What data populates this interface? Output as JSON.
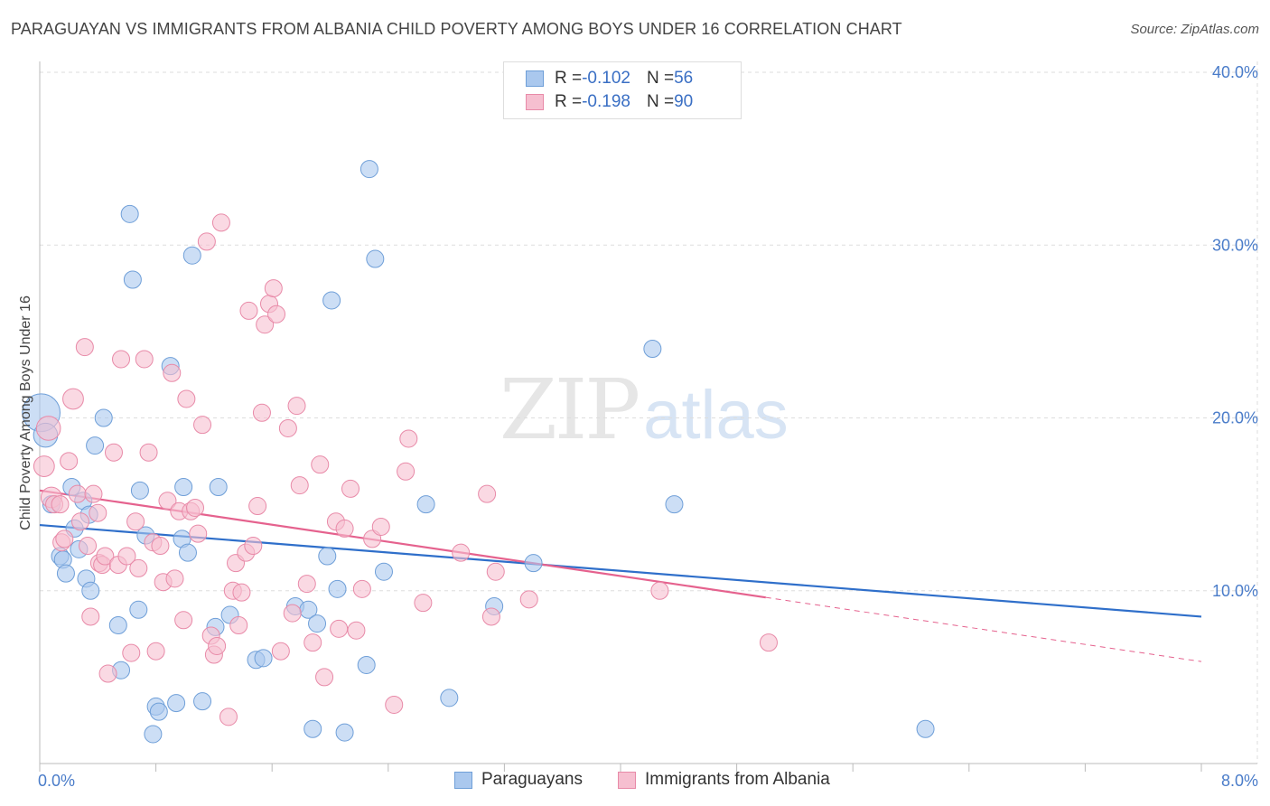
{
  "header": {
    "title": "PARAGUAYAN VS IMMIGRANTS FROM ALBANIA CHILD POVERTY AMONG BOYS UNDER 16 CORRELATION CHART",
    "source": "Source: ZipAtlas.com"
  },
  "watermark": {
    "zip": "ZIP",
    "atlas": "atlas"
  },
  "legend": {
    "rows": [
      {
        "r_label": "R = ",
        "r_value": "-0.102",
        "n_label": "N = ",
        "n_value": "56"
      },
      {
        "r_label": "R = ",
        "r_value": "-0.198",
        "n_label": "N = ",
        "n_value": "90"
      }
    ],
    "bottom": [
      "Paraguayans",
      "Immigrants from Albania"
    ]
  },
  "colors": {
    "blue_fill": "#aac8ee",
    "blue_stroke": "#6f9fd8",
    "blue_line": "#2f6fca",
    "pink_fill": "#f6bfd0",
    "pink_stroke": "#e88aa8",
    "pink_line": "#e5628e",
    "grid": "#dddddd",
    "tick_text": "#4a7cc9"
  },
  "chart_data": {
    "type": "scatter",
    "title": "PARAGUAYAN VS IMMIGRANTS FROM ALBANIA CHILD POVERTY AMONG BOYS UNDER 16 CORRELATION CHART",
    "xlabel": "",
    "ylabel": "Child Poverty Among Boys Under 16",
    "xlim": [
      0,
      8
    ],
    "ylim": [
      0,
      40
    ],
    "x_ticks": [
      "0.0%",
      "8.0%"
    ],
    "y_ticks": [
      {
        "value": 10,
        "label": "10.0%"
      },
      {
        "value": 20,
        "label": "20.0%"
      },
      {
        "value": 30,
        "label": "30.0%"
      },
      {
        "value": 40,
        "label": "40.0%"
      }
    ],
    "grid": true,
    "legend_position": "top-center",
    "series": [
      {
        "name": "Paraguayans",
        "r": -0.102,
        "n": 56,
        "trend": {
          "x0": 0,
          "y0": 13.8,
          "x1": 8,
          "y1": 8.5,
          "dashed_from": null
        },
        "points": [
          [
            0.01,
            20.3,
            22
          ],
          [
            0.04,
            19.0,
            14
          ],
          [
            0.08,
            15.0,
            10
          ],
          [
            0.14,
            12.0,
            10
          ],
          [
            0.16,
            11.8,
            10
          ],
          [
            0.18,
            11.0,
            10
          ],
          [
            0.22,
            16.0,
            10
          ],
          [
            0.24,
            13.6,
            10
          ],
          [
            0.27,
            12.4,
            10
          ],
          [
            0.3,
            15.2,
            10
          ],
          [
            0.32,
            10.7,
            10
          ],
          [
            0.34,
            14.4,
            10
          ],
          [
            0.35,
            10.0,
            10
          ],
          [
            0.38,
            18.4,
            10
          ],
          [
            0.44,
            20.0,
            10
          ],
          [
            0.54,
            8.0,
            10
          ],
          [
            0.56,
            5.4,
            10
          ],
          [
            0.62,
            31.8,
            10
          ],
          [
            0.64,
            28.0,
            10
          ],
          [
            0.68,
            8.9,
            10
          ],
          [
            0.69,
            15.8,
            10
          ],
          [
            0.73,
            13.2,
            10
          ],
          [
            0.78,
            1.7,
            10
          ],
          [
            0.8,
            3.3,
            10
          ],
          [
            0.82,
            3.0,
            10
          ],
          [
            0.9,
            23.0,
            10
          ],
          [
            0.94,
            3.5,
            10
          ],
          [
            0.98,
            13.0,
            10
          ],
          [
            0.99,
            16.0,
            10
          ],
          [
            1.02,
            12.2,
            10
          ],
          [
            1.05,
            29.4,
            10
          ],
          [
            1.12,
            3.6,
            10
          ],
          [
            1.21,
            7.9,
            10
          ],
          [
            1.23,
            16.0,
            10
          ],
          [
            1.31,
            8.6,
            10
          ],
          [
            1.49,
            6.0,
            10
          ],
          [
            1.54,
            6.1,
            10
          ],
          [
            1.76,
            9.1,
            10
          ],
          [
            1.85,
            8.9,
            10
          ],
          [
            1.88,
            2.0,
            10
          ],
          [
            1.91,
            8.1,
            10
          ],
          [
            1.98,
            12.0,
            10
          ],
          [
            2.01,
            26.8,
            10
          ],
          [
            2.05,
            10.1,
            10
          ],
          [
            2.1,
            1.8,
            10
          ],
          [
            2.25,
            5.7,
            10
          ],
          [
            2.27,
            34.4,
            10
          ],
          [
            2.31,
            29.2,
            10
          ],
          [
            2.37,
            11.1,
            10
          ],
          [
            2.66,
            15.0,
            10
          ],
          [
            2.82,
            3.8,
            10
          ],
          [
            3.13,
            9.1,
            10
          ],
          [
            3.4,
            11.6,
            10
          ],
          [
            4.22,
            24.0,
            10
          ],
          [
            4.37,
            15.0,
            10
          ],
          [
            6.1,
            2.0,
            10
          ]
        ]
      },
      {
        "name": "Immigrants from Albania",
        "r": -0.198,
        "n": 90,
        "trend": {
          "x0": 0,
          "y0": 15.8,
          "x1": 8,
          "y1": 5.9,
          "dashed_from": 5.0
        },
        "points": [
          [
            0.03,
            17.2,
            12
          ],
          [
            0.06,
            19.4,
            14
          ],
          [
            0.08,
            15.4,
            12
          ],
          [
            0.1,
            15.0,
            10
          ],
          [
            0.14,
            15.0,
            10
          ],
          [
            0.15,
            12.8,
            10
          ],
          [
            0.17,
            13.0,
            10
          ],
          [
            0.2,
            17.5,
            10
          ],
          [
            0.23,
            21.1,
            12
          ],
          [
            0.26,
            15.6,
            10
          ],
          [
            0.28,
            14.0,
            10
          ],
          [
            0.31,
            24.1,
            10
          ],
          [
            0.33,
            12.6,
            10
          ],
          [
            0.35,
            8.5,
            10
          ],
          [
            0.37,
            15.6,
            10
          ],
          [
            0.4,
            14.5,
            10
          ],
          [
            0.41,
            11.6,
            10
          ],
          [
            0.43,
            11.5,
            10
          ],
          [
            0.45,
            12.0,
            10
          ],
          [
            0.47,
            5.2,
            10
          ],
          [
            0.51,
            18.0,
            10
          ],
          [
            0.54,
            11.5,
            10
          ],
          [
            0.56,
            23.4,
            10
          ],
          [
            0.6,
            12.0,
            10
          ],
          [
            0.63,
            6.4,
            10
          ],
          [
            0.66,
            14.0,
            10
          ],
          [
            0.68,
            11.3,
            10
          ],
          [
            0.72,
            23.4,
            10
          ],
          [
            0.75,
            18.0,
            10
          ],
          [
            0.78,
            12.8,
            10
          ],
          [
            0.8,
            6.5,
            10
          ],
          [
            0.83,
            12.6,
            10
          ],
          [
            0.85,
            10.5,
            10
          ],
          [
            0.88,
            15.2,
            10
          ],
          [
            0.91,
            22.6,
            10
          ],
          [
            0.93,
            10.7,
            10
          ],
          [
            0.96,
            14.6,
            10
          ],
          [
            0.99,
            8.3,
            10
          ],
          [
            1.01,
            21.1,
            10
          ],
          [
            1.04,
            14.6,
            10
          ],
          [
            1.07,
            14.8,
            10
          ],
          [
            1.09,
            13.3,
            10
          ],
          [
            1.12,
            19.6,
            10
          ],
          [
            1.15,
            30.2,
            10
          ],
          [
            1.18,
            7.4,
            10
          ],
          [
            1.2,
            6.3,
            10
          ],
          [
            1.22,
            6.8,
            10
          ],
          [
            1.25,
            31.3,
            10
          ],
          [
            1.3,
            2.7,
            10
          ],
          [
            1.33,
            10.0,
            10
          ],
          [
            1.35,
            11.6,
            10
          ],
          [
            1.37,
            8.0,
            10
          ],
          [
            1.39,
            9.9,
            10
          ],
          [
            1.42,
            12.2,
            10
          ],
          [
            1.44,
            26.2,
            10
          ],
          [
            1.47,
            12.6,
            10
          ],
          [
            1.5,
            14.9,
            10
          ],
          [
            1.53,
            20.3,
            10
          ],
          [
            1.55,
            25.4,
            10
          ],
          [
            1.58,
            26.6,
            10
          ],
          [
            1.61,
            27.5,
            10
          ],
          [
            1.63,
            26.0,
            10
          ],
          [
            1.66,
            6.5,
            10
          ],
          [
            1.71,
            19.4,
            10
          ],
          [
            1.74,
            8.7,
            10
          ],
          [
            1.77,
            20.7,
            10
          ],
          [
            1.79,
            16.1,
            10
          ],
          [
            1.84,
            10.4,
            10
          ],
          [
            1.88,
            7.0,
            10
          ],
          [
            1.93,
            17.3,
            10
          ],
          [
            1.96,
            5.0,
            10
          ],
          [
            2.04,
            14.0,
            10
          ],
          [
            2.06,
            7.8,
            10
          ],
          [
            2.1,
            13.6,
            10
          ],
          [
            2.14,
            15.9,
            10
          ],
          [
            2.18,
            7.7,
            10
          ],
          [
            2.22,
            10.1,
            10
          ],
          [
            2.29,
            13.0,
            10
          ],
          [
            2.35,
            13.7,
            10
          ],
          [
            2.44,
            3.4,
            10
          ],
          [
            2.52,
            16.9,
            10
          ],
          [
            2.54,
            18.8,
            10
          ],
          [
            2.64,
            9.3,
            10
          ],
          [
            2.9,
            12.2,
            10
          ],
          [
            3.08,
            15.6,
            10
          ],
          [
            3.11,
            8.5,
            10
          ],
          [
            3.14,
            11.1,
            10
          ],
          [
            3.37,
            9.5,
            10
          ],
          [
            4.27,
            10.0,
            10
          ],
          [
            5.02,
            7.0,
            10
          ]
        ]
      }
    ]
  }
}
